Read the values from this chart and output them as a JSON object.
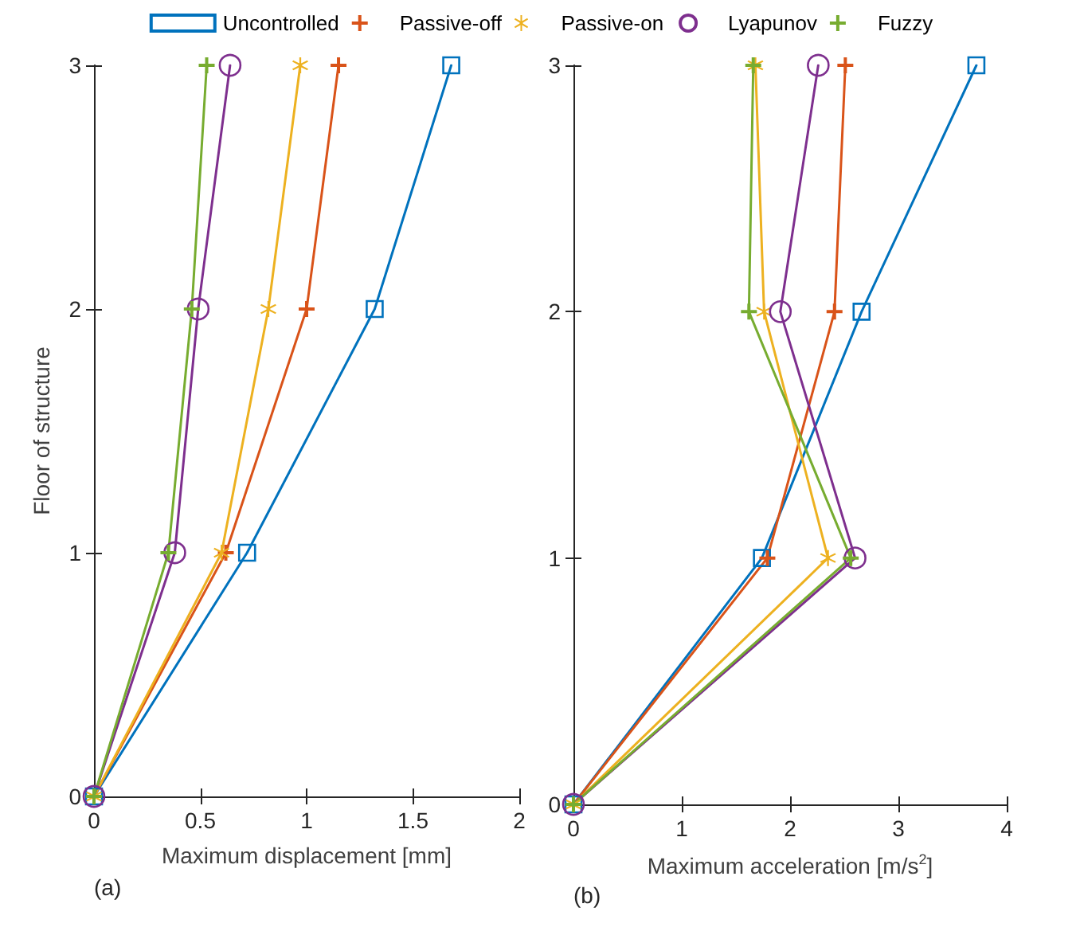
{
  "chart_data": [
    {
      "type": "line",
      "xlabel": "Maximum displacement [mm]",
      "ylabel": "Floor of structure",
      "annotations": [
        "(a)"
      ],
      "xlim": [
        0,
        2
      ],
      "xticks": [
        0,
        0.5,
        1,
        1.5,
        2
      ],
      "ylim": [
        0,
        3
      ],
      "yticks": [
        0,
        1,
        2,
        3
      ],
      "legend": "top",
      "grid": false,
      "series": [
        {
          "name": "Uncontrolled",
          "color": "#0072bd",
          "marker": "square",
          "x": [
            0,
            0.72,
            1.32,
            1.68
          ],
          "values": [
            0,
            1,
            2,
            3
          ]
        },
        {
          "name": "Passive-off",
          "color": "#d95319",
          "marker": "cross",
          "x": [
            0,
            0.62,
            1.0,
            1.15
          ],
          "values": [
            0,
            1,
            2,
            3
          ]
        },
        {
          "name": "Passive-on",
          "color": "#edb120",
          "marker": "star",
          "x": [
            0,
            0.6,
            0.82,
            0.97
          ],
          "values": [
            0,
            1,
            2,
            3
          ]
        },
        {
          "name": "Lyapunov",
          "color": "#7e2f8e",
          "marker": "circle",
          "x": [
            0,
            0.38,
            0.49,
            0.64
          ],
          "values": [
            0,
            1,
            2,
            3
          ]
        },
        {
          "name": "Fuzzy",
          "color": "#77ac30",
          "marker": "cross",
          "x": [
            0,
            0.35,
            0.46,
            0.53
          ],
          "values": [
            0,
            1,
            2,
            3
          ]
        }
      ]
    },
    {
      "type": "line",
      "xlabel": "Maximum acceleration [m/s$^{2}$]",
      "annotations": [
        "(b)"
      ],
      "xlim": [
        0,
        4
      ],
      "xticks": [
        0,
        1,
        2,
        3,
        4
      ],
      "ylim": [
        0,
        3
      ],
      "yticks": [
        0,
        1,
        2,
        3
      ],
      "grid": false,
      "series": [
        {
          "color": "#0072bd",
          "marker": "square",
          "x": [
            0,
            1.74,
            2.66,
            3.72
          ],
          "values": [
            0,
            1,
            2,
            3
          ]
        },
        {
          "color": "#d95319",
          "marker": "cross",
          "x": [
            0,
            1.79,
            2.41,
            2.51
          ],
          "values": [
            0,
            1,
            2,
            3
          ]
        },
        {
          "color": "#edb120",
          "marker": "star",
          "x": [
            0,
            2.35,
            1.76,
            1.68
          ],
          "values": [
            0,
            1,
            2,
            3
          ]
        },
        {
          "color": "#7e2f8e",
          "marker": "circle",
          "x": [
            0,
            2.6,
            1.91,
            2.26
          ],
          "values": [
            0,
            1,
            2,
            3
          ]
        },
        {
          "color": "#77ac30",
          "marker": "cross",
          "x": [
            0,
            2.56,
            1.62,
            1.66
          ],
          "values": [
            0,
            1,
            2,
            3
          ]
        }
      ]
    }
  ]
}
